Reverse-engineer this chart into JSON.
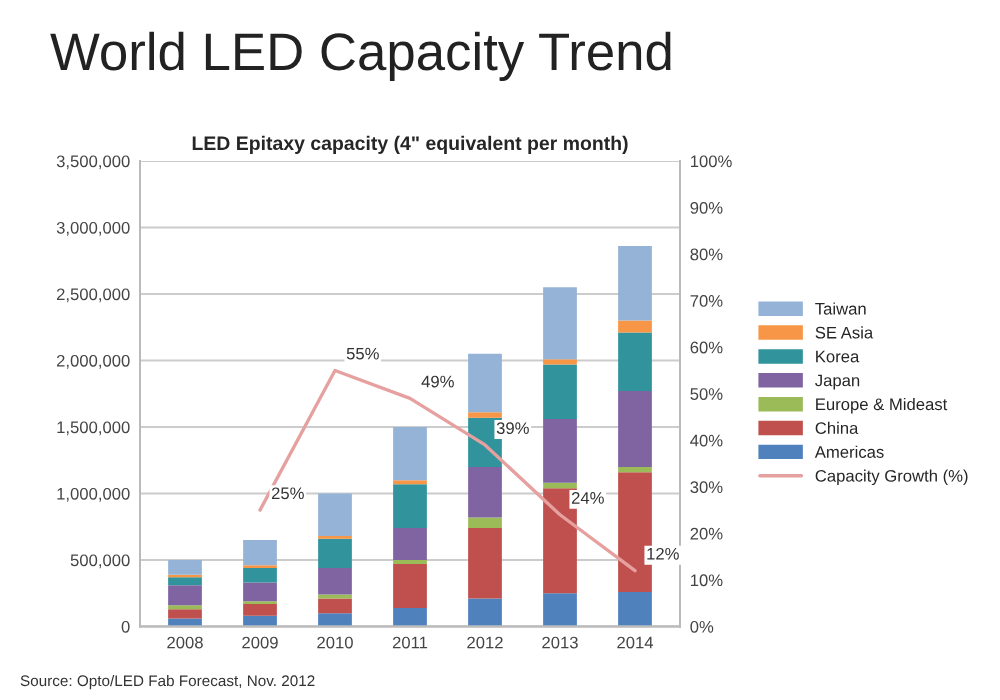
{
  "chart_data": {
    "type": "bar",
    "title": "World LED Capacity Trend",
    "subtitle": "LED Epitaxy capacity (4\" equivalent per month)",
    "categories": [
      "2008",
      "2009",
      "2010",
      "2011",
      "2012",
      "2013",
      "2014"
    ],
    "stacked": true,
    "series": [
      {
        "name": "Americas",
        "color": "#4f81bd",
        "values": [
          60000,
          80000,
          100000,
          140000,
          210000,
          250000,
          260000
        ]
      },
      {
        "name": "China",
        "color": "#c0504d",
        "values": [
          70000,
          90000,
          110000,
          330000,
          530000,
          790000,
          900000
        ]
      },
      {
        "name": "Europe & Mideast",
        "color": "#9bbb59",
        "values": [
          30000,
          20000,
          30000,
          30000,
          80000,
          40000,
          40000
        ]
      },
      {
        "name": "Japan",
        "color": "#8064a2",
        "values": [
          150000,
          140000,
          200000,
          240000,
          380000,
          480000,
          570000
        ]
      },
      {
        "name": "Korea",
        "color": "#31949c",
        "values": [
          60000,
          110000,
          220000,
          330000,
          370000,
          410000,
          440000
        ]
      },
      {
        "name": "SE Asia",
        "color": "#f79646",
        "values": [
          20000,
          20000,
          20000,
          30000,
          40000,
          40000,
          90000
        ]
      },
      {
        "name": "Taiwan",
        "color": "#95b3d7",
        "values": [
          110000,
          190000,
          320000,
          400000,
          440000,
          540000,
          560000
        ]
      },
      {
        "name": "Capacity Growth (%)",
        "color": "#e6a0a0",
        "type": "line",
        "axis": "y2",
        "values": [
          null,
          25,
          55,
          49,
          39,
          24,
          12
        ],
        "value_labels": [
          null,
          "25%",
          "55%",
          "49%",
          "39%",
          "24%",
          "12%"
        ]
      }
    ],
    "ylim": [
      0,
      3500000
    ],
    "yticks": [
      {
        "value": 0,
        "label": "0"
      },
      {
        "value": 500000,
        "label": "500,000"
      },
      {
        "value": 1000000,
        "label": "1,000,000"
      },
      {
        "value": 1500000,
        "label": "1,500,000"
      },
      {
        "value": 2000000,
        "label": "2,000,000"
      },
      {
        "value": 2500000,
        "label": "2,500,000"
      },
      {
        "value": 3000000,
        "label": "3,000,000"
      },
      {
        "value": 3500000,
        "label": "3,500,000"
      }
    ],
    "y2lim": [
      0,
      100
    ],
    "y2ticks": [
      {
        "value": 0,
        "label": "0%"
      },
      {
        "value": 10,
        "label": "10%"
      },
      {
        "value": 20,
        "label": "20%"
      },
      {
        "value": 30,
        "label": "30%"
      },
      {
        "value": 40,
        "label": "40%"
      },
      {
        "value": 50,
        "label": "50%"
      },
      {
        "value": 60,
        "label": "60%"
      },
      {
        "value": 70,
        "label": "70%"
      },
      {
        "value": 80,
        "label": "80%"
      },
      {
        "value": 90,
        "label": "90%"
      },
      {
        "value": 100,
        "label": "100%"
      }
    ],
    "grid": "y",
    "legend": "right",
    "marker": "none",
    "annotations": [
      "Source: Opto/LED Fab Forecast, Nov. 2012"
    ]
  }
}
